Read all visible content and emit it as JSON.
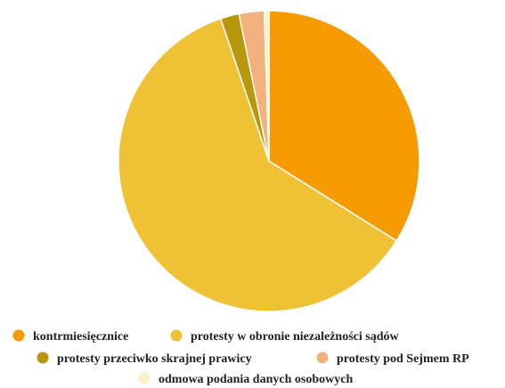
{
  "chart_data": {
    "type": "pie",
    "title": "",
    "legend_position": "bottom",
    "slices": [
      {
        "label": "kontrmiesięcznice",
        "value": 33.9,
        "color": "#f59b00"
      },
      {
        "label": "protesty w obronie niezależności sądów",
        "value": 60.9,
        "color": "#efc236"
      },
      {
        "label": "protesty przeciwko skrajnej prawicy",
        "value": 2.0,
        "color": "#b8970b"
      },
      {
        "label": "protesty pod Sejmem RP",
        "value": 2.7,
        "color": "#f2b27d"
      },
      {
        "label": "odmowa podania danych osobowych",
        "value": 0.5,
        "color": "#fdf0c4"
      }
    ]
  }
}
